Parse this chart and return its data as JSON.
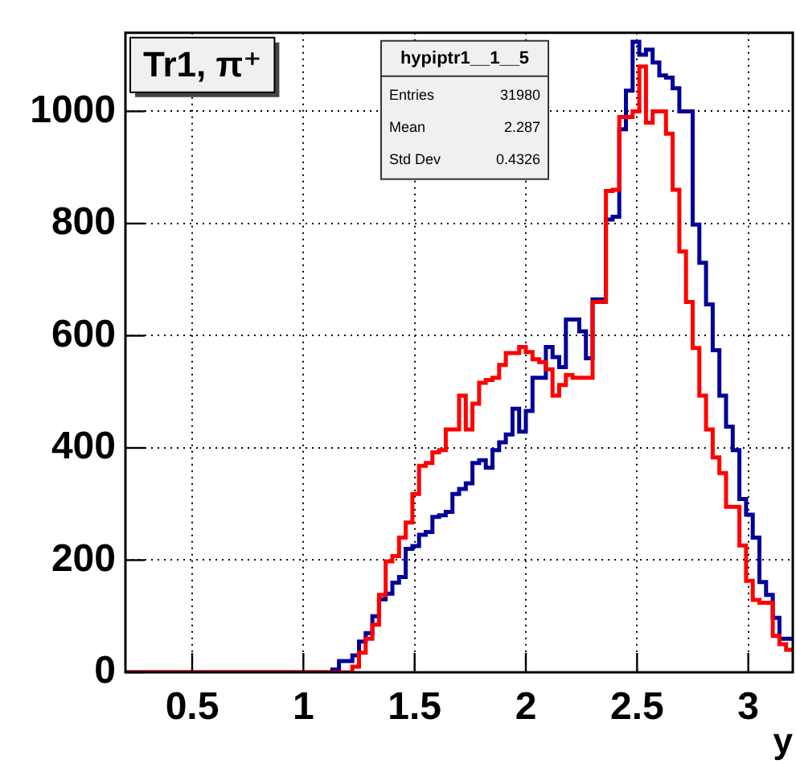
{
  "chart_data": {
    "type": "histogram",
    "xlabel": "y",
    "annotations": [
      "Tr1, π⁺",
      "hypiptr1__1__5",
      "Entries 31980",
      "Mean 2.287",
      "Std Dev 0.4326"
    ],
    "bins": [
      0.2,
      0.23,
      0.26,
      0.29,
      0.32,
      0.35,
      0.38,
      0.41,
      0.44,
      0.47,
      0.5,
      0.53,
      0.56,
      0.59,
      0.62,
      0.65,
      0.68,
      0.71,
      0.74,
      0.77,
      0.8,
      0.83,
      0.86,
      0.89,
      0.92,
      0.95,
      0.98,
      1.01,
      1.04,
      1.07,
      1.1,
      1.13,
      1.16,
      1.19,
      1.22,
      1.25,
      1.28,
      1.31,
      1.34,
      1.37,
      1.4,
      1.43,
      1.46,
      1.49,
      1.52,
      1.55,
      1.58,
      1.61,
      1.64,
      1.67,
      1.7,
      1.73,
      1.76,
      1.79,
      1.82,
      1.85,
      1.88,
      1.91,
      1.94,
      1.97,
      2.0,
      2.03,
      2.06,
      2.09,
      2.12,
      2.15,
      2.18,
      2.21,
      2.24,
      2.27,
      2.3,
      2.33,
      2.36,
      2.39,
      2.42,
      2.45,
      2.48,
      2.51,
      2.54,
      2.57,
      2.6,
      2.63,
      2.66,
      2.69,
      2.72,
      2.75,
      2.78,
      2.81,
      2.84,
      2.87,
      2.9,
      2.93,
      2.96,
      2.99,
      3.02,
      3.05,
      3.08,
      3.11,
      3.14,
      3.17,
      3.2
    ],
    "series": [
      {
        "color": "#ff0000",
        "values": [
          0,
          0,
          0,
          0,
          0,
          0,
          0,
          0,
          0,
          0,
          0,
          0,
          0,
          0,
          0,
          0,
          0,
          0,
          0,
          0,
          0,
          0,
          0,
          0,
          0,
          0,
          0,
          0,
          0,
          0,
          0,
          0,
          0,
          0,
          10,
          35,
          60,
          85,
          138,
          198,
          207,
          240,
          267,
          318,
          368,
          373,
          392,
          396,
          433,
          433,
          493,
          433,
          479,
          516,
          521,
          525,
          548,
          569,
          569,
          580,
          571,
          558,
          553,
          540,
          493,
          512,
          530,
          525,
          525,
          525,
          660,
          660,
          858,
          860,
          990,
          990,
          1000,
          1080,
          980,
          1000,
          1000,
          960,
          860,
          750,
          660,
          578,
          493,
          433,
          383,
          355,
          295,
          295,
          226,
          163,
          129,
          124,
          124,
          65,
          50,
          40
        ]
      },
      {
        "color": "#000099",
        "values": [
          0,
          0,
          0,
          0,
          0,
          0,
          0,
          0,
          0,
          0,
          0,
          0,
          0,
          0,
          0,
          0,
          0,
          0,
          0,
          0,
          0,
          0,
          0,
          0,
          0,
          0,
          0,
          0,
          0,
          0,
          0,
          5,
          20,
          20,
          30,
          55,
          70,
          100,
          130,
          140,
          160,
          170,
          220,
          225,
          245,
          250,
          277,
          280,
          286,
          318,
          327,
          337,
          373,
          378,
          365,
          396,
          410,
          424,
          470,
          429,
          466,
          525,
          525,
          580,
          562,
          544,
          629,
          629,
          608,
          560,
          665,
          665,
          807,
          812,
          968,
          1037,
          1124,
          1101,
          1110,
          1087,
          1064,
          1060,
          1041,
          1000,
          1000,
          798,
          730,
          656,
          574,
          493,
          438,
          396,
          309,
          281,
          240,
          161,
          138,
          97,
          60,
          60
        ]
      }
    ],
    "xlim": [
      0.2,
      3.2
    ],
    "xticks": [
      0.5,
      1,
      1.5,
      2,
      2.5,
      3
    ],
    "ylim": [
      0,
      1140
    ],
    "yticks": [
      0,
      200,
      400,
      600,
      800,
      1000
    ],
    "grid": true
  }
}
